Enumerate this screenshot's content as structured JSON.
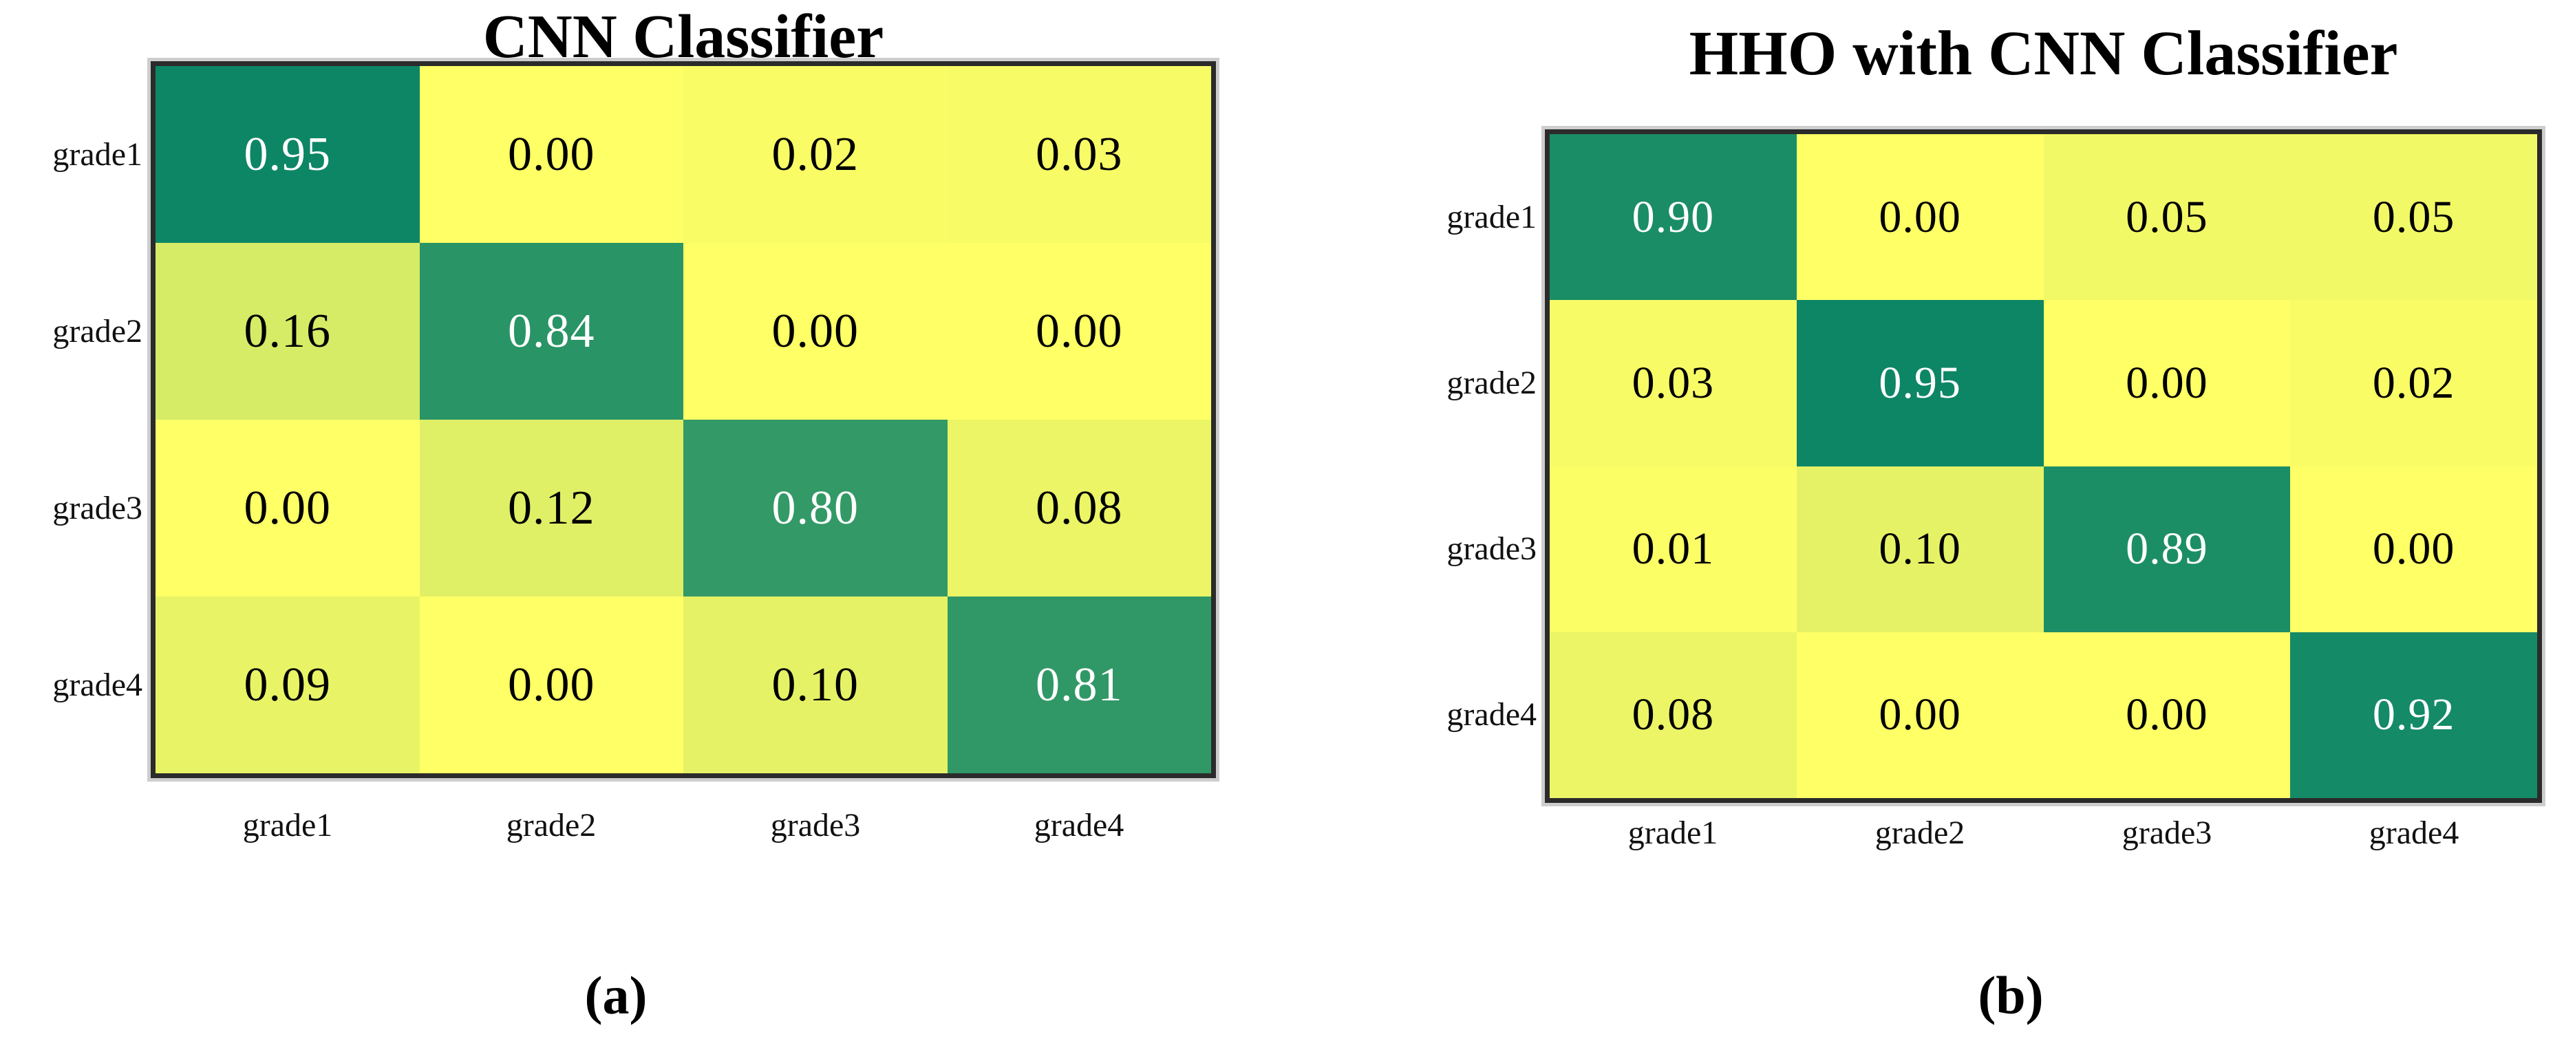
{
  "figure": {
    "background_hex": "#ffffff",
    "description_text_visible": false
  },
  "chart_data": [
    {
      "type": "heatmap",
      "title": "CNN Classifier",
      "caption": "(a)",
      "row_labels": [
        "grade1",
        "grade2",
        "grade3",
        "grade4"
      ],
      "col_labels": [
        "grade1",
        "grade2",
        "grade3",
        "grade4"
      ],
      "values": [
        [
          0.95,
          0.0,
          0.02,
          0.03
        ],
        [
          0.16,
          0.84,
          0.0,
          0.0
        ],
        [
          0.0,
          0.12,
          0.8,
          0.08
        ],
        [
          0.09,
          0.0,
          0.1,
          0.81
        ]
      ],
      "value_format": "2-decimals",
      "value_range": [
        0,
        1
      ],
      "colormap": "summer_r (yellow low to green high)",
      "legend": "none",
      "grid": "off"
    },
    {
      "type": "heatmap",
      "title": "HHO with CNN Classifier",
      "caption": "(b)",
      "row_labels": [
        "grade1",
        "grade2",
        "grade3",
        "grade4"
      ],
      "col_labels": [
        "grade1",
        "grade2",
        "grade3",
        "grade4"
      ],
      "values": [
        [
          0.9,
          0.0,
          0.05,
          0.05
        ],
        [
          0.03,
          0.95,
          0.0,
          0.02
        ],
        [
          0.01,
          0.1,
          0.89,
          0.0
        ],
        [
          0.08,
          0.0,
          0.0,
          0.92
        ]
      ],
      "value_format": "2-decimals",
      "value_range": [
        0,
        1
      ],
      "colormap": "summer_r (yellow low to green high)",
      "legend": "none",
      "grid": "off"
    }
  ],
  "colormap_style": {
    "low_hex": "#ffff66",
    "high_hex": "#008066",
    "text_light_hex": "#ffffff",
    "text_dark_hex": "#000000",
    "light_text_threshold": 0.5,
    "frame_border_hex": "#2b2b2b",
    "frame_ring_hex": "#cdcdcd",
    "label_hex": "#111111"
  }
}
